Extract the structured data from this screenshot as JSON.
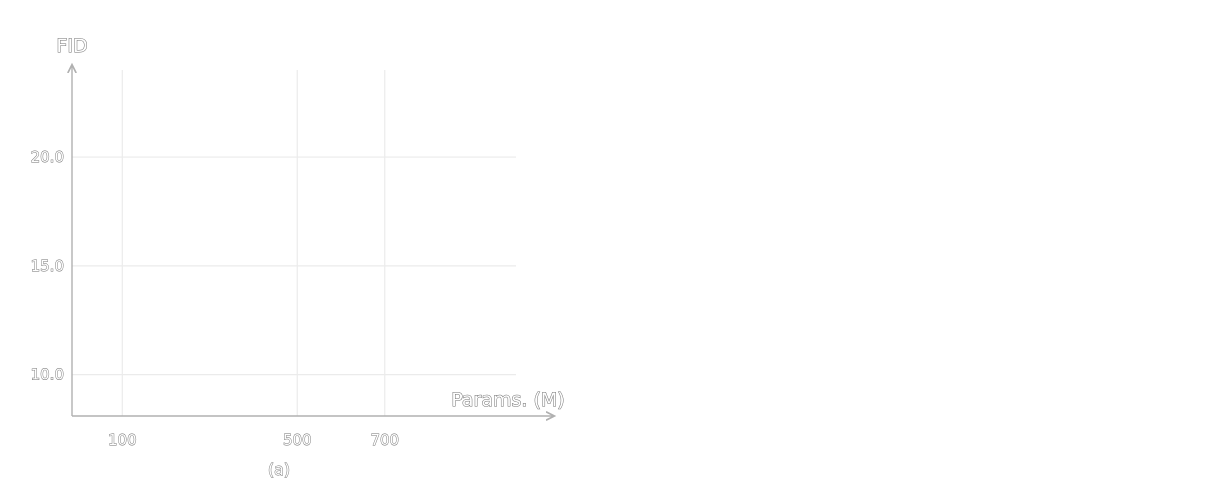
{
  "chart_data": {
    "type": "scatter",
    "title": "",
    "caption": "(a)",
    "xlabel": "Params. (M)",
    "ylabel": "FID",
    "x_ticks": [
      100,
      500,
      700
    ],
    "x_tick_labels": [
      "100",
      "500",
      "700"
    ],
    "y_ticks": [
      10.0,
      15.0,
      20.0
    ],
    "y_tick_labels": [
      "10.0",
      "15.0",
      "20.0"
    ],
    "xlim": [
      -15,
      1000
    ],
    "ylim": [
      8.1,
      24
    ],
    "grid": true,
    "series": []
  },
  "colors": {
    "grid": "#ebebeb",
    "axis": "#b0b0b0"
  }
}
